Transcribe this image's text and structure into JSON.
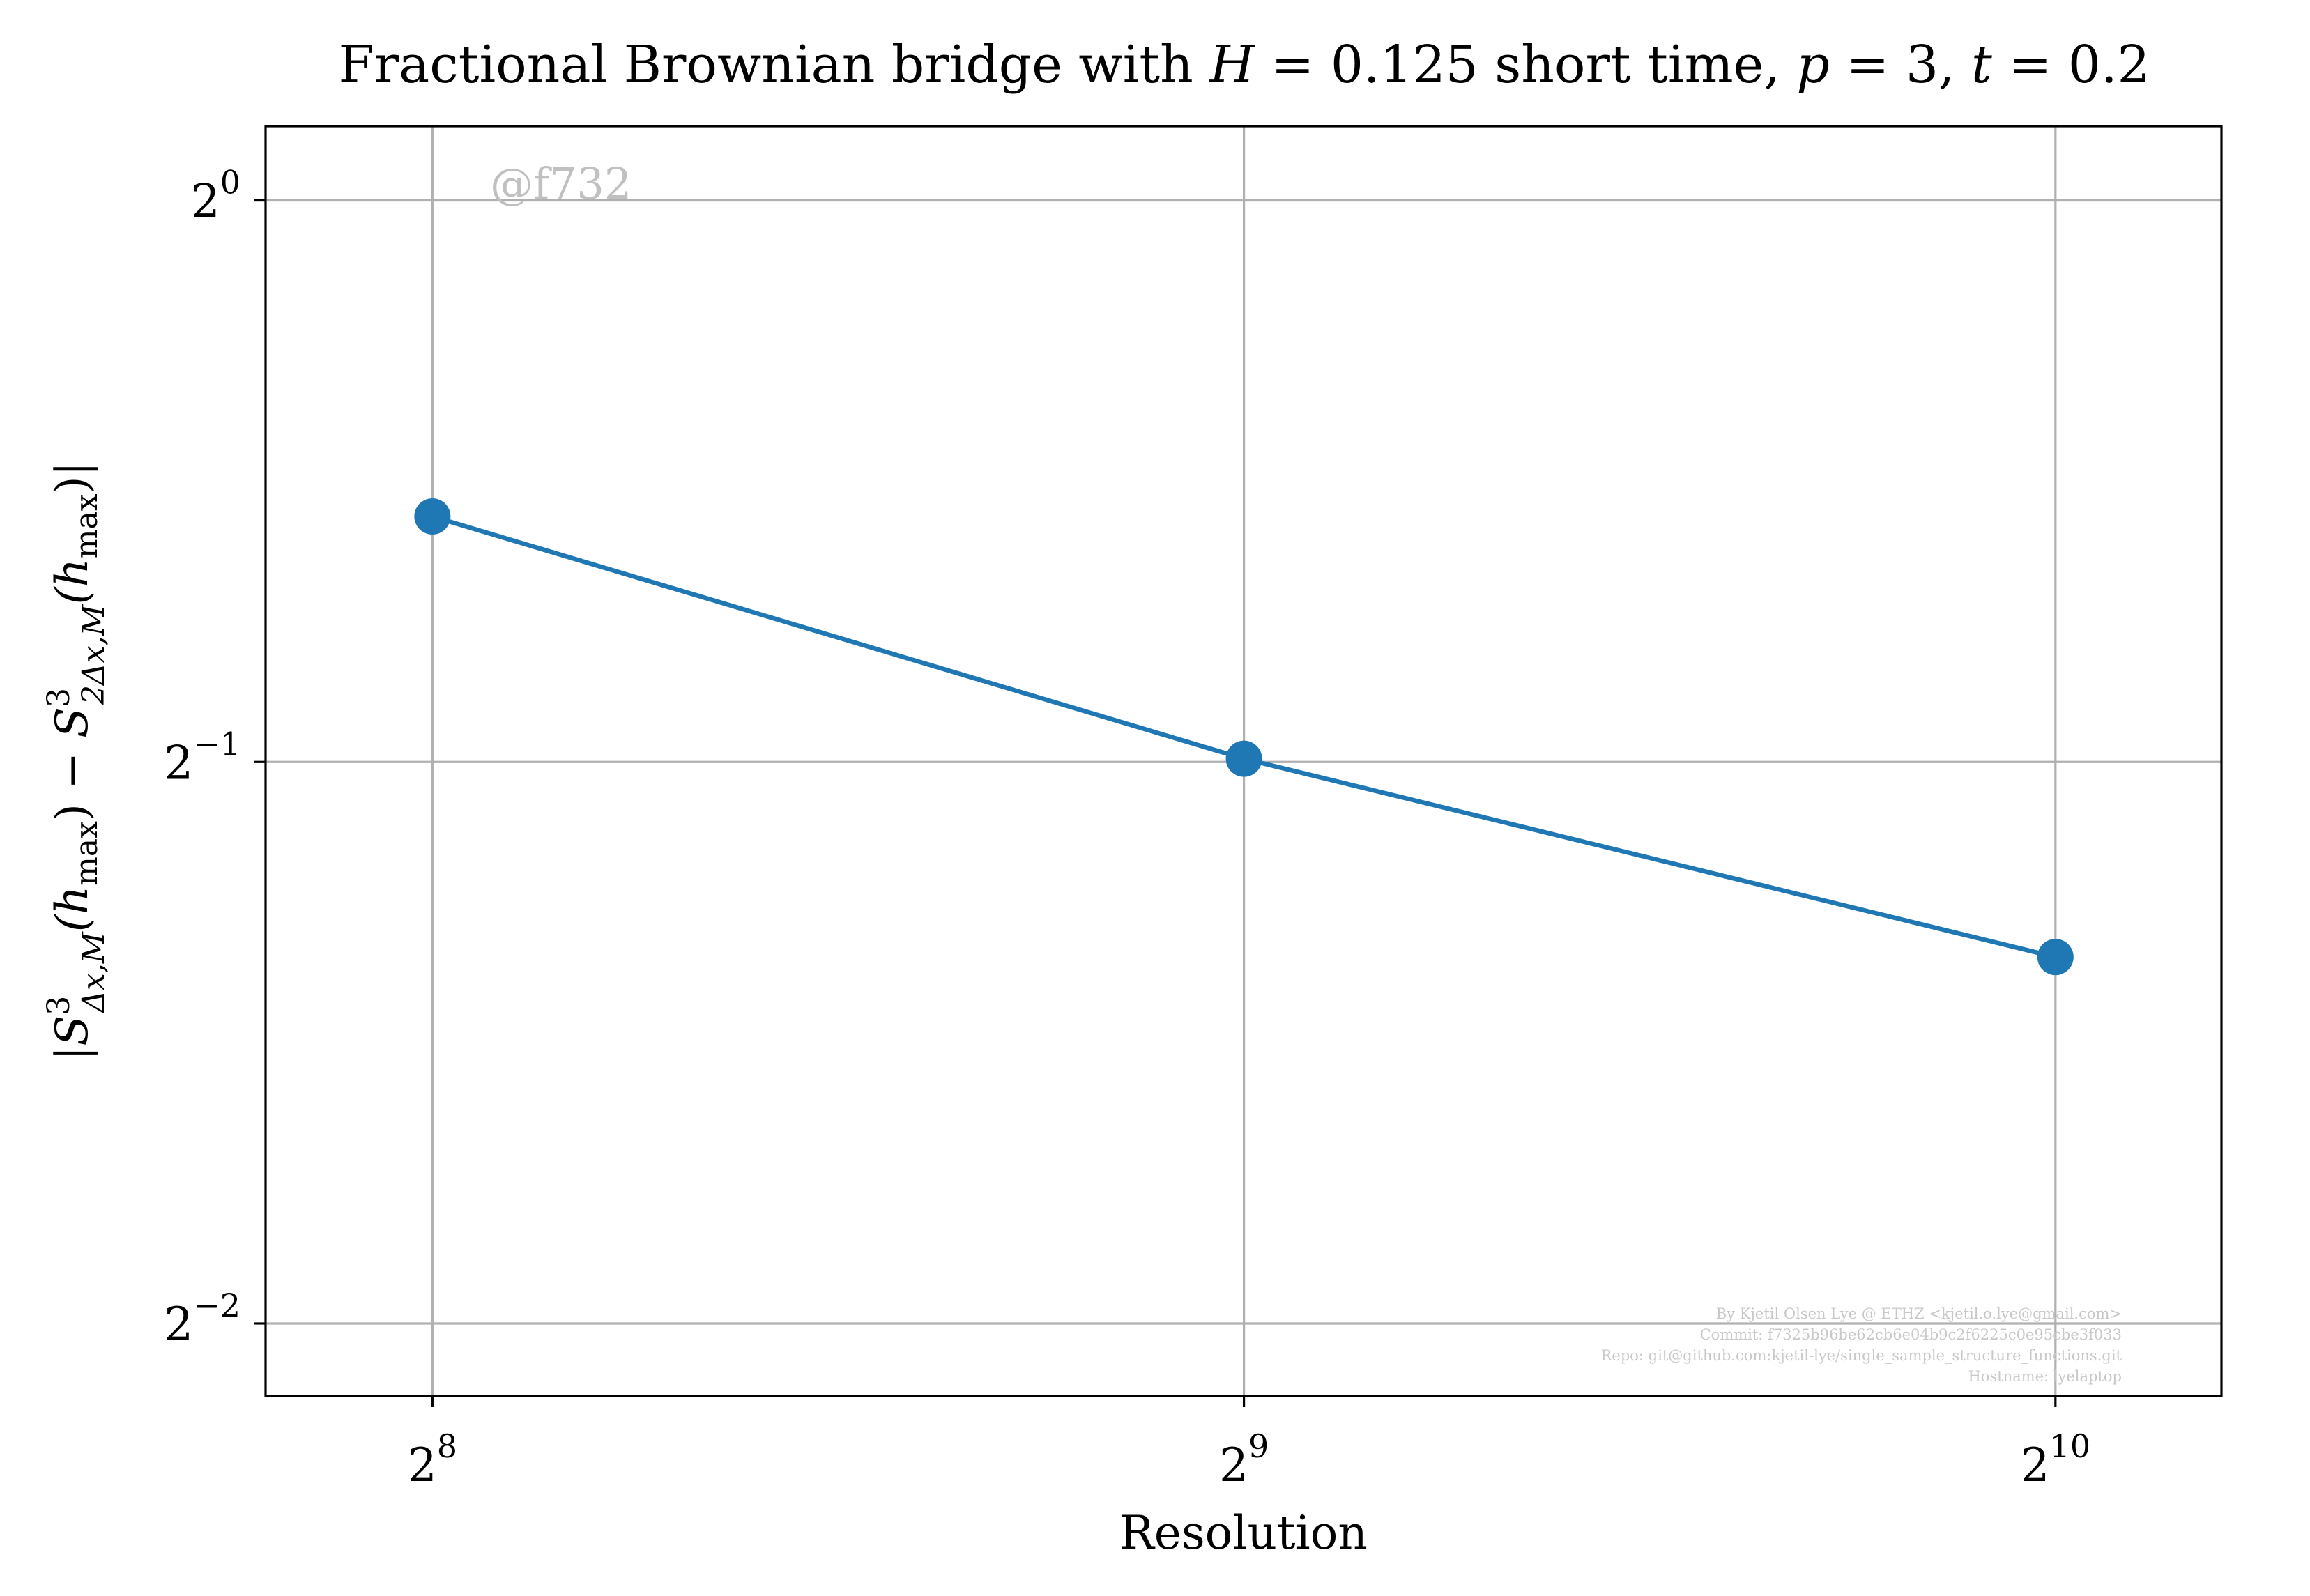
{
  "chart_data": {
    "type": "line",
    "title_parts": [
      "Fractional Brownian bridge with ",
      "H",
      " = 0.125 short time, ",
      "p",
      " = 3, ",
      "t",
      " = 0.2"
    ],
    "xlabel": "Resolution",
    "ylabel": "|S³Δx,M(hmax) − S³2Δx,M(hmax)|",
    "ylabel_parts": {
      "open": "|",
      "s1": "S",
      "sup1": "3",
      "sub1": "Δx,M",
      "arg1": "(h",
      "argsub1": "max",
      "argclose1": ")",
      "minus": " − ",
      "s2": "S",
      "sup2": "3",
      "sub2": "2Δx,M",
      "arg2": "(h",
      "argsub2": "max",
      "argclose2": ")|"
    },
    "xscale": "log2",
    "yscale": "log2",
    "x_ticks": [
      {
        "value": 256,
        "base": "2",
        "exp": "8"
      },
      {
        "value": 512,
        "base": "2",
        "exp": "9"
      },
      {
        "value": 1024,
        "base": "2",
        "exp": "10"
      }
    ],
    "y_ticks": [
      {
        "value": 1,
        "base": "2",
        "exp": "0"
      },
      {
        "value": 0.5,
        "base": "2",
        "exp": "−1"
      },
      {
        "value": 0.25,
        "base": "2",
        "exp": "−2"
      }
    ],
    "xlim": [
      222,
      1180
    ],
    "ylim": [
      0.2286,
      1.096
    ],
    "grid": true,
    "series": [
      {
        "x": [
          256,
          512,
          1024
        ],
        "values": [
          0.677,
          0.502,
          0.393
        ],
        "color": "#1f77b4",
        "marker": "circle"
      }
    ],
    "watermark": "@f732",
    "credits": [
      "By Kjetil Olsen Lye @ ETHZ <kjetil.o.lye@gmail.com>",
      "Commit: f7325b96be62cb6e04b9c2f6225c0e95cbe3f033",
      "Repo: git@github.com:kjetil-lye/single_sample_structure_functions.git",
      "Hostname: lyelaptop"
    ]
  }
}
